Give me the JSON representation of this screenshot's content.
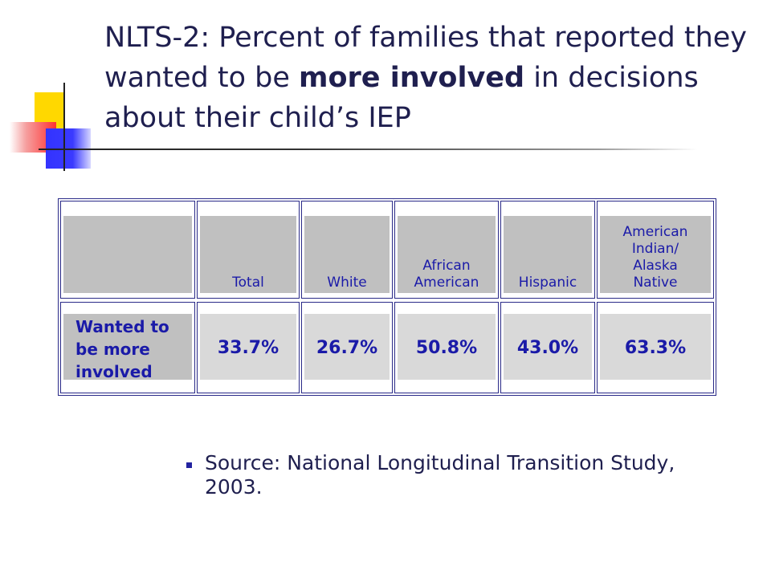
{
  "title": {
    "part1": "NLTS-2: Percent of families that reported they wanted to be ",
    "emphasis": "more involved",
    "part2": " in decisions about their child’s IEP"
  },
  "chart_data": {
    "type": "table",
    "columns": [
      "",
      "Total",
      "White",
      "African\nAmerican",
      "Hispanic",
      "American\nIndian/\nAlaska\nNative"
    ],
    "rows": [
      {
        "label": "Wanted to\nbe more\ninvolved",
        "values": [
          "33.7%",
          "26.7%",
          "50.8%",
          "43.0%",
          "63.3%"
        ]
      }
    ]
  },
  "source": {
    "text": "Source: National Longitudinal Transition Study, 2003."
  }
}
